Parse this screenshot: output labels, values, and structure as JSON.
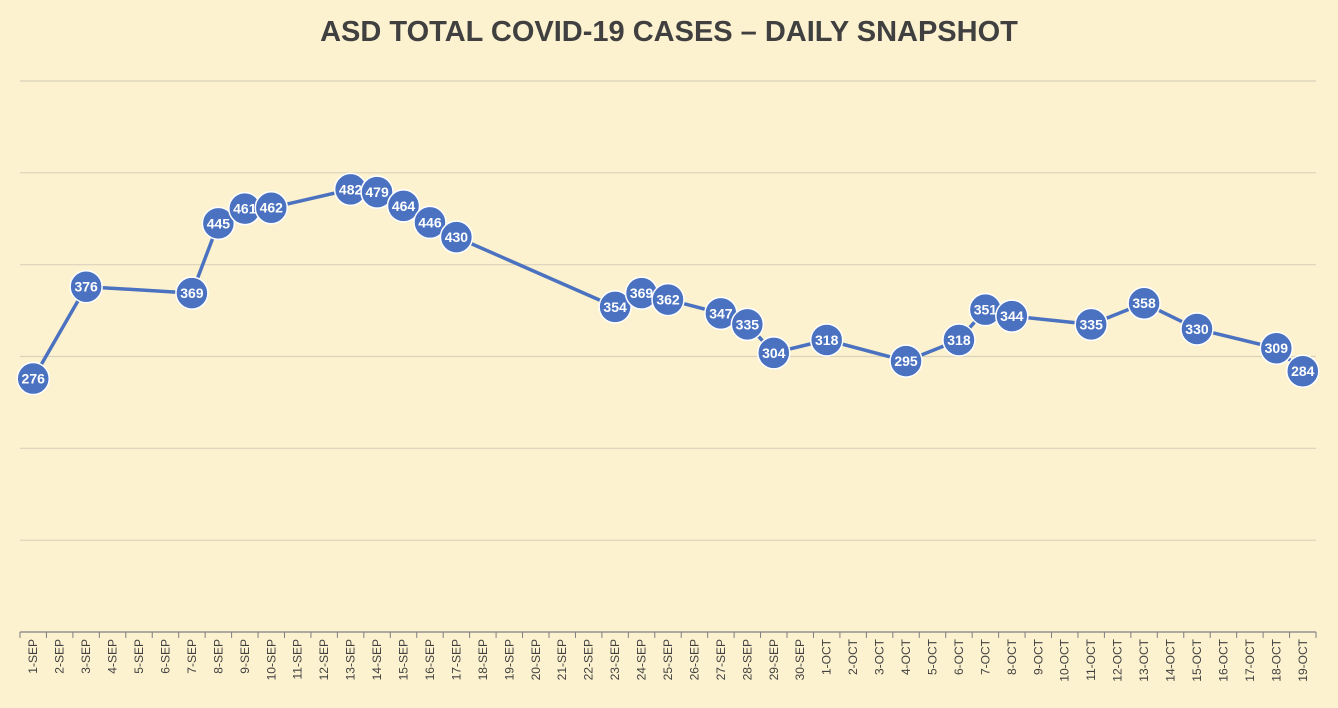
{
  "chart_data": {
    "type": "line",
    "title": "ASD TOTAL COVID-19 CASES – DAILY SNAPSHOT",
    "xlabel": "",
    "ylabel": "",
    "ylim": [
      0,
      600
    ],
    "y_gridlines": [
      100,
      200,
      300,
      400,
      500,
      600
    ],
    "grid": true,
    "legend": "none",
    "colors": {
      "background": "#fdf2cf",
      "line": "#4a72c0",
      "marker": "#4a72c0",
      "marker_border": "#ffffff",
      "label": "#ffffff",
      "grid": "#d9d2bc",
      "axis": "#7f7f7f",
      "title": "#404040",
      "tick_label": "#404040"
    },
    "categories": [
      "1-SEP",
      "2-SEP",
      "3-SEP",
      "4-SEP",
      "5-SEP",
      "6-SEP",
      "7-SEP",
      "8-SEP",
      "9-SEP",
      "10-SEP",
      "11-SEP",
      "12-SEP",
      "13-SEP",
      "14-SEP",
      "15-SEP",
      "16-SEP",
      "17-SEP",
      "18-SEP",
      "19-SEP",
      "20-SEP",
      "21-SEP",
      "22-SEP",
      "23-SEP",
      "24-SEP",
      "25-SEP",
      "26-SEP",
      "27-SEP",
      "28-SEP",
      "29-SEP",
      "30-SEP",
      "1-OCT",
      "2-OCT",
      "3-OCT",
      "4-OCT",
      "5-OCT",
      "6-OCT",
      "7-OCT",
      "8-OCT",
      "9-OCT",
      "10-OCT",
      "11-OCT",
      "12-OCT",
      "13-OCT",
      "14-OCT",
      "15-OCT",
      "16-OCT",
      "17-OCT",
      "18-OCT",
      "19-OCT"
    ],
    "series": [
      {
        "values": [
          276,
          null,
          376,
          null,
          null,
          null,
          369,
          445,
          461,
          462,
          null,
          null,
          482,
          479,
          464,
          446,
          430,
          null,
          null,
          null,
          null,
          null,
          354,
          369,
          362,
          null,
          347,
          335,
          304,
          null,
          318,
          null,
          null,
          295,
          null,
          318,
          351,
          344,
          null,
          null,
          335,
          null,
          358,
          null,
          330,
          null,
          null,
          309,
          284
        ]
      }
    ]
  }
}
